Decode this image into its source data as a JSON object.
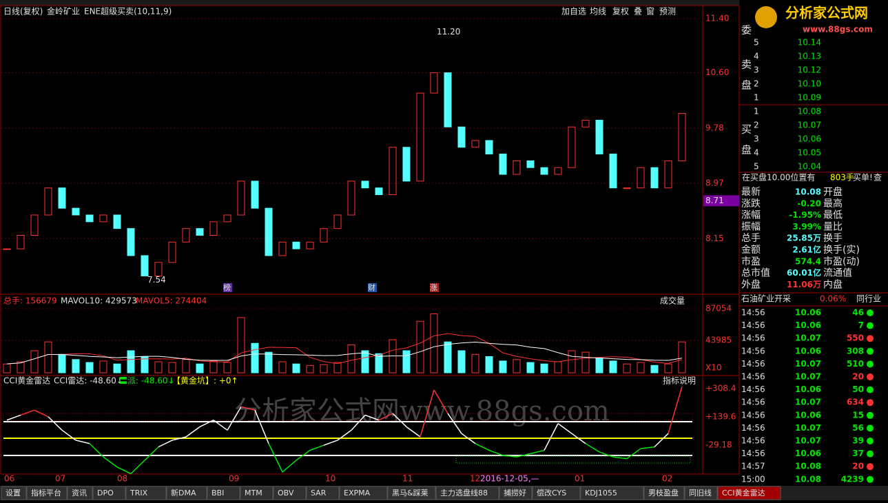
{
  "header": {
    "period": "日线(复权)",
    "stock": "金岭矿业",
    "indicator": "ENE超级买卖(10,11,9)"
  },
  "toolbar": [
    "加自选",
    "均线",
    "复权",
    "叠",
    "窗",
    "预测"
  ],
  "logo": {
    "name": "分析家公式网",
    "url": "www.88gs.com"
  },
  "watermark": "分析家公式网www.88gs.com",
  "price_chart": {
    "type": "candlestick",
    "ylim": [
      7.33,
      11.41
    ],
    "yticks": [
      {
        "value": 11.4,
        "label": "11.40"
      },
      {
        "value": 10.6,
        "label": "10.60"
      },
      {
        "value": 9.78,
        "label": "9.78"
      },
      {
        "value": 8.97,
        "label": "8.97"
      },
      {
        "value": 8.15,
        "label": "8.15"
      }
    ],
    "current_price": 8.71,
    "high_label": {
      "value": 11.2,
      "label": "11.20"
    },
    "low_label": 7.54,
    "markers": [
      "榜",
      "财",
      "涨"
    ],
    "up_color": "#ff3232",
    "down_color": "#54ffff",
    "closes": [
      8.0,
      8.2,
      8.5,
      8.9,
      8.6,
      8.5,
      8.4,
      8.5,
      8.3,
      7.9,
      7.6,
      7.8,
      8.1,
      8.3,
      8.2,
      8.4,
      8.5,
      9.0,
      8.6,
      7.9,
      8.1,
      8.0,
      8.1,
      8.3,
      8.5,
      9.0,
      8.9,
      8.8,
      9.5,
      9.0,
      10.3,
      10.6,
      9.8,
      9.5,
      9.6,
      9.4,
      9.1,
      9.3,
      9.2,
      9.1,
      9.2,
      9.8,
      9.9,
      9.4,
      8.9,
      8.9,
      9.2,
      8.9,
      9.3,
      10.0
    ]
  },
  "volume_chart": {
    "type": "bar",
    "legend": [
      "总手: 156679",
      "MAVOL10: 429573",
      "MAVOL5: 274404"
    ],
    "selector": "成交量",
    "ylim": [
      0,
      90800
    ],
    "yticks": [
      87054,
      43985
    ],
    "unit": "X10",
    "values": [
      12000,
      15000,
      30000,
      42000,
      25000,
      18000,
      14000,
      16000,
      12000,
      30000,
      22000,
      15000,
      14000,
      18000,
      12000,
      16000,
      14000,
      75000,
      40000,
      28000,
      15000,
      12000,
      10000,
      11000,
      14000,
      38000,
      30000,
      26000,
      45000,
      30000,
      70000,
      80000,
      42000,
      30000,
      25000,
      22000,
      16000,
      18000,
      14000,
      12000,
      15000,
      30000,
      28000,
      20000,
      16000,
      12000,
      14000,
      10000,
      12000,
      42000
    ]
  },
  "cci_chart": {
    "type": "line",
    "legend": [
      "CCI黄金雷达",
      "CCI雷达: -48.60↓",
      "〓派: -48.60↓",
      "【黄金坑】: +0↑"
    ],
    "help": "指标说明",
    "ylim": [
      -202,
      374
    ],
    "yticks": [
      {
        "value": 308.4,
        "label": "+308.4"
      },
      {
        "value": 139.6,
        "label": "+139.6"
      },
      {
        "value": -29.18,
        "label": "-29.18"
      }
    ],
    "values": [
      120,
      150,
      180,
      140,
      60,
      0,
      -20,
      -100,
      -160,
      -200,
      -120,
      -40,
      0,
      20,
      80,
      120,
      60,
      200,
      180,
      -20,
      -190,
      -120,
      -60,
      -30,
      0,
      60,
      150,
      120,
      160,
      80,
      20,
      300,
      160,
      40,
      -20,
      -60,
      -90,
      -100,
      -80,
      -60,
      100,
      40,
      -20,
      -70,
      -100,
      -110,
      -50,
      -40,
      40,
      320
    ],
    "up_color": "#ff3232",
    "mid_color": "#ffffff",
    "down_color": "#00e600"
  },
  "x_axis": {
    "labels": [
      "06",
      "07",
      "08",
      "09",
      "10",
      "11",
      "12",
      "01",
      "02"
    ],
    "cursor": "2016-12-05,—"
  },
  "tabs": [
    "设置",
    "指标平台",
    "资讯",
    "DPO",
    "TRIX",
    "新DMA",
    "BBI",
    "MTM",
    "OBV",
    "SAR",
    "EXPMA",
    "黑马&踩莱",
    "主力选盘线88",
    "捕捞好",
    "偿改CYS",
    "KDJ1055",
    "男枝盈盘",
    "同旧线",
    "CCI黄金雷达"
  ],
  "order_book": {
    "sell_label": [
      "委",
      "卖",
      "盘"
    ],
    "buy_label": [
      "买",
      "盘"
    ],
    "sells": [
      [
        "5",
        "10.14"
      ],
      [
        "4",
        "10.13"
      ],
      [
        "3",
        "10.12"
      ],
      [
        "2",
        "10.10"
      ],
      [
        "1",
        "10.09"
      ]
    ],
    "buys": [
      [
        "1",
        "10.08"
      ],
      [
        "2",
        "10.07"
      ],
      [
        "3",
        "10.06"
      ],
      [
        "4",
        "10.05"
      ],
      [
        "5",
        "10.04"
      ]
    ],
    "notice": [
      "在买盘10.00位置有",
      "803手",
      "买单!",
      "查"
    ]
  },
  "stats": [
    [
      "最新",
      "10.08",
      "开盘"
    ],
    [
      "涨跌",
      "-0.20",
      "最高"
    ],
    [
      "涨幅",
      "-1.95%",
      "最低"
    ],
    [
      "振幅",
      "3.99%",
      "量比"
    ],
    [
      "总手",
      "25.85万",
      "换手"
    ],
    [
      "金额",
      "2.61亿",
      "换手(实)"
    ],
    [
      "市盈",
      "574.4",
      "市盈(动)"
    ],
    [
      "总市值",
      "60.01亿",
      "流通值"
    ],
    [
      "外盘",
      "11.06万",
      "内盘"
    ]
  ],
  "industry": [
    "石油矿业开采",
    "0.06%",
    "同行业"
  ],
  "trades": [
    [
      "14:56",
      "10.06",
      "46",
      "#00e600"
    ],
    [
      "14:56",
      "10.06",
      "7",
      "#00e600"
    ],
    [
      "14:56",
      "10.07",
      "550",
      "#ff3232"
    ],
    [
      "14:56",
      "10.06",
      "308",
      "#00e600"
    ],
    [
      "14:56",
      "10.07",
      "510",
      "#00e600"
    ],
    [
      "14:56",
      "10.07",
      "20",
      "#ff3232"
    ],
    [
      "14:56",
      "10.06",
      "50",
      "#00e600"
    ],
    [
      "14:56",
      "10.07",
      "634",
      "#ff3232"
    ],
    [
      "14:56",
      "10.06",
      "15",
      "#00e600"
    ],
    [
      "14:56",
      "10.07",
      "56",
      "#00e600"
    ],
    [
      "14:56",
      "10.07",
      "39",
      "#00e600"
    ],
    [
      "14:56",
      "10.06",
      "37",
      "#00e600"
    ],
    [
      "14:57",
      "10.08",
      "20",
      "#ff3232"
    ],
    [
      "15:00",
      "10.08",
      "4239",
      "#00e600"
    ]
  ]
}
